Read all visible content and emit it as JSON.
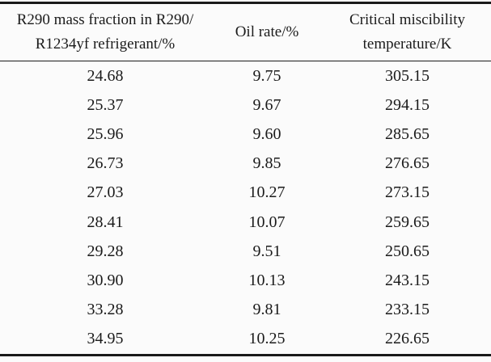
{
  "table": {
    "columns": [
      {
        "id": "mass_fraction",
        "label_lines": [
          "R290 mass fraction in R290/",
          "R1234yf refrigerant/%"
        ]
      },
      {
        "id": "oil_rate",
        "label_lines": [
          "Oil rate/%"
        ]
      },
      {
        "id": "critical_temperature",
        "label_lines": [
          "Critical miscibility",
          "temperature/K"
        ]
      }
    ],
    "rows": [
      [
        "24.68",
        "9.75",
        "305.15"
      ],
      [
        "25.37",
        "9.67",
        "294.15"
      ],
      [
        "25.96",
        "9.60",
        "285.65"
      ],
      [
        "26.73",
        "9.85",
        "276.65"
      ],
      [
        "27.03",
        "10.27",
        "273.15"
      ],
      [
        "28.41",
        "10.07",
        "259.65"
      ],
      [
        "29.28",
        "9.51",
        "250.65"
      ],
      [
        "30.90",
        "10.13",
        "243.15"
      ],
      [
        "33.28",
        "9.81",
        "233.15"
      ],
      [
        "34.95",
        "10.25",
        "226.65"
      ]
    ]
  },
  "colors": {
    "background": "#fbfbfb",
    "text": "#1b1b1b",
    "rule": "#1a1a1a"
  }
}
